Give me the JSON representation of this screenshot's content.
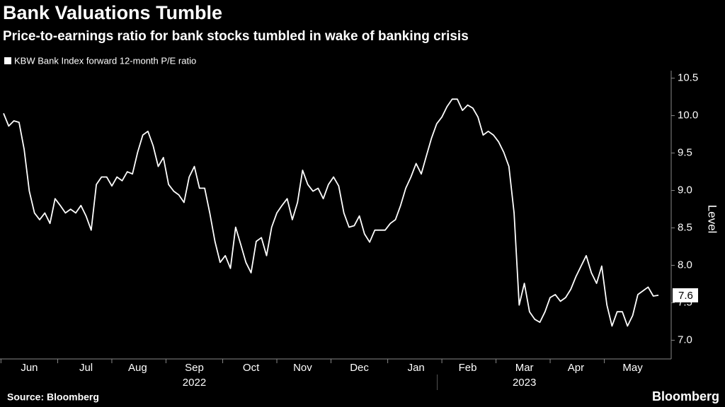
{
  "chart_data": {
    "type": "line",
    "title": "Bank Valuations Tumble",
    "subtitle": "Price-to-earnings ratio for bank stocks tumbled in wake of banking crisis",
    "y_axis_label": "Level",
    "source": "Source: Bloomberg",
    "brand": "Bloomberg",
    "series": [
      {
        "name": "KBW Bank Index forward 12-month P/E ratio",
        "color": "#ffffff",
        "values": [
          10.03,
          9.86,
          9.93,
          9.91,
          9.55,
          8.99,
          8.7,
          8.61,
          8.7,
          8.56,
          8.89,
          8.8,
          8.7,
          8.75,
          8.7,
          8.8,
          8.66,
          8.47,
          9.08,
          9.18,
          9.18,
          9.06,
          9.18,
          9.13,
          9.25,
          9.22,
          9.51,
          9.74,
          9.79,
          9.6,
          9.32,
          9.44,
          9.08,
          8.99,
          8.94,
          8.84,
          9.18,
          9.32,
          9.03,
          9.03,
          8.7,
          8.32,
          8.04,
          8.13,
          7.96,
          8.51,
          8.28,
          8.04,
          7.9,
          8.32,
          8.37,
          8.13,
          8.51,
          8.7,
          8.8,
          8.89,
          8.61,
          8.84,
          9.27,
          9.08,
          8.99,
          9.03,
          8.89,
          9.08,
          9.18,
          9.06,
          8.7,
          8.51,
          8.53,
          8.66,
          8.42,
          8.31,
          8.47,
          8.47,
          8.47,
          8.56,
          8.61,
          8.8,
          9.03,
          9.18,
          9.36,
          9.22,
          9.46,
          9.7,
          9.89,
          9.98,
          10.12,
          10.22,
          10.22,
          10.07,
          10.14,
          10.1,
          9.98,
          9.74,
          9.79,
          9.74,
          9.65,
          9.51,
          9.32,
          8.7,
          7.47,
          7.76,
          7.38,
          7.28,
          7.24,
          7.38,
          7.57,
          7.61,
          7.52,
          7.57,
          7.68,
          7.85,
          7.99,
          8.13,
          7.9,
          7.76,
          7.99,
          7.47,
          7.19,
          7.38,
          7.38,
          7.19,
          7.33,
          7.61,
          7.66,
          7.71,
          7.59,
          7.6
        ]
      }
    ],
    "xticks": [
      {
        "value": 5,
        "label": "Jun"
      },
      {
        "value": 16,
        "label": "Jul"
      },
      {
        "value": 26,
        "label": "Aug"
      },
      {
        "value": 37,
        "label": "Sep"
      },
      {
        "value": 48,
        "label": "Oct"
      },
      {
        "value": 58,
        "label": "Nov"
      },
      {
        "value": 69,
        "label": "Dec"
      },
      {
        "value": 80,
        "label": "Jan"
      },
      {
        "value": 90,
        "label": "Feb"
      },
      {
        "value": 101,
        "label": "Mar"
      },
      {
        "value": 111,
        "label": "Apr"
      },
      {
        "value": 122,
        "label": "May"
      }
    ],
    "year_labels": [
      {
        "value": 37,
        "label": "2022"
      },
      {
        "value": 101,
        "label": "2023"
      }
    ],
    "ylim": [
      6.75,
      10.6
    ],
    "yticks": [
      {
        "value": 7,
        "label": "7.0"
      },
      7.5,
      {
        "value": 8,
        "label": "8.0"
      },
      8.5,
      {
        "value": 9,
        "label": "9.0"
      },
      9.5,
      {
        "value": 10,
        "label": "10.0"
      },
      10.5
    ],
    "grid": false
  }
}
